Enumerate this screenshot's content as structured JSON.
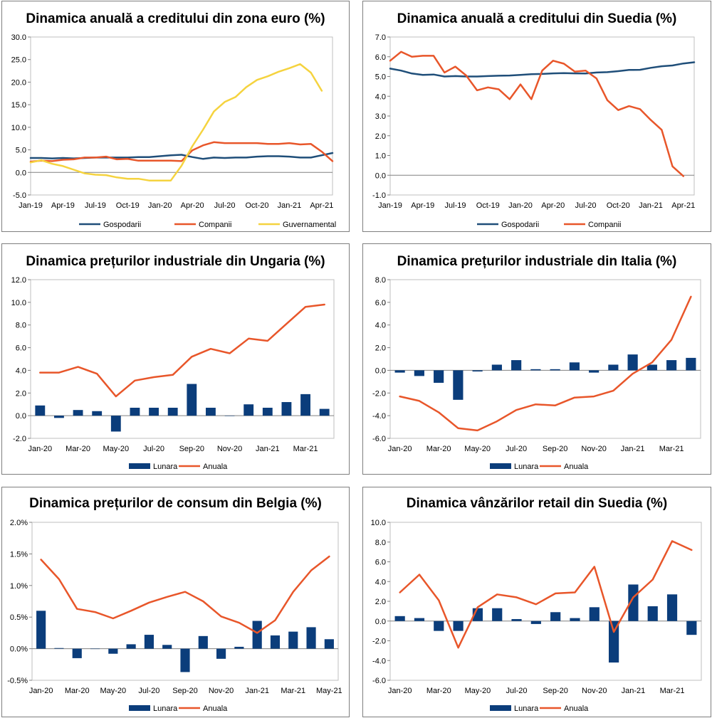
{
  "chart_data": [
    {
      "type": "line",
      "title": "Dinamica anuală a creditului din zona euro (%)",
      "xlabel": "",
      "ylabel": "",
      "ylim": [
        -5,
        30
      ],
      "ystep": 5,
      "ydecimals": 1,
      "ypercent": false,
      "x_tick_labels": [
        "Jan-19",
        "Apr-19",
        "Jul-19",
        "Oct-19",
        "Jan-20",
        "Apr-20",
        "Jul-20",
        "Oct-20",
        "Jan-21",
        "Apr-21"
      ],
      "series": [
        {
          "name": "Gospodarii",
          "kind": "line",
          "color": "#1f4e79",
          "values": [
            3.2,
            3.2,
            3.1,
            3.2,
            3.1,
            3.2,
            3.3,
            3.3,
            3.3,
            3.3,
            3.4,
            3.4,
            3.6,
            3.8,
            3.9,
            3.4,
            3.0,
            3.3,
            3.2,
            3.3,
            3.3,
            3.5,
            3.6,
            3.6,
            3.5,
            3.3,
            3.3,
            3.8,
            4.3
          ]
        },
        {
          "name": "Companii",
          "kind": "line",
          "color": "#e8562a",
          "values": [
            2.4,
            2.6,
            2.5,
            2.8,
            2.9,
            3.3,
            3.3,
            3.5,
            2.9,
            3.0,
            2.6,
            2.6,
            2.6,
            2.6,
            2.5,
            4.9,
            6.0,
            6.7,
            6.5,
            6.5,
            6.5,
            6.5,
            6.3,
            6.3,
            6.5,
            6.2,
            6.3,
            4.6,
            2.5
          ]
        },
        {
          "name": "Guvernamental",
          "kind": "line",
          "color": "#f5d33f",
          "values": [
            2.2,
            2.7,
            1.9,
            1.4,
            0.6,
            -0.2,
            -0.5,
            -0.6,
            -1.1,
            -1.4,
            -1.4,
            -1.8,
            -1.8,
            -1.8,
            1.5,
            5.8,
            9.5,
            13.5,
            15.6,
            16.7,
            18.9,
            20.5,
            21.3,
            22.3,
            23.1,
            24.0,
            22.1,
            18.1
          ]
        }
      ]
    },
    {
      "type": "line",
      "title": "Dinamica anuală a creditului din Suedia (%)",
      "xlabel": "",
      "ylabel": "",
      "ylim": [
        -1,
        7
      ],
      "ystep": 1,
      "ydecimals": 1,
      "ypercent": false,
      "x_tick_labels": [
        "Jan-19",
        "Apr-19",
        "Jul-19",
        "Oct-19",
        "Jan-20",
        "Apr-20",
        "Jul-20",
        "Oct-20",
        "Jan-21",
        "Apr-21"
      ],
      "series": [
        {
          "name": "Gospodarii",
          "kind": "line",
          "color": "#1f4e79",
          "values": [
            5.4,
            5.3,
            5.15,
            5.08,
            5.1,
            5.0,
            5.02,
            5.0,
            5.0,
            5.02,
            5.04,
            5.05,
            5.08,
            5.12,
            5.13,
            5.16,
            5.17,
            5.16,
            5.15,
            5.2,
            5.22,
            5.27,
            5.33,
            5.34,
            5.44,
            5.52,
            5.56,
            5.66,
            5.72
          ]
        },
        {
          "name": "Companii",
          "kind": "line",
          "color": "#e8562a",
          "values": [
            5.8,
            6.25,
            6.0,
            6.05,
            6.05,
            5.2,
            5.5,
            5.05,
            4.3,
            4.45,
            4.35,
            3.85,
            4.6,
            3.85,
            5.3,
            5.8,
            5.65,
            5.25,
            5.3,
            4.9,
            3.8,
            3.3,
            3.5,
            3.35,
            2.8,
            2.3,
            0.45,
            -0.05
          ]
        }
      ]
    },
    {
      "type": "bar+line",
      "title": "Dinamica prețurilor industriale din Ungaria (%)",
      "xlabel": "",
      "ylabel": "",
      "ylim": [
        -2,
        12
      ],
      "ystep": 2,
      "ydecimals": 1,
      "ypercent": false,
      "x_tick_labels": [
        "Jan-20",
        "Mar-20",
        "May-20",
        "Jul-20",
        "Sep-20",
        "Nov-20",
        "Jan-21",
        "Mar-21"
      ],
      "series": [
        {
          "name": "Lunara",
          "kind": "bar",
          "color": "#0b3d7b",
          "values": [
            0.9,
            -0.2,
            0.5,
            0.4,
            -1.4,
            0.7,
            0.7,
            0.7,
            2.8,
            0.7,
            0,
            1.0,
            0.7,
            1.2,
            1.9,
            0.6
          ]
        },
        {
          "name": "Anuala",
          "kind": "line",
          "color": "#e8562a",
          "values": [
            3.8,
            3.8,
            4.3,
            3.7,
            1.7,
            3.1,
            3.4,
            3.6,
            5.2,
            5.9,
            5.5,
            6.8,
            6.6,
            8.1,
            9.6,
            9.8
          ]
        }
      ]
    },
    {
      "type": "bar+line",
      "title": "Dinamica prețurilor industriale din Italia (%)",
      "xlabel": "",
      "ylabel": "",
      "ylim": [
        -6,
        8
      ],
      "ystep": 2,
      "ydecimals": 1,
      "ypercent": false,
      "x_tick_labels": [
        "Jan-20",
        "Mar-20",
        "May-20",
        "Jul-20",
        "Sep-20",
        "Nov-20",
        "Jan-21",
        "Mar-21"
      ],
      "series": [
        {
          "name": "Lunara",
          "kind": "bar",
          "color": "#0b3d7b",
          "values": [
            -0.2,
            -0.5,
            -1.1,
            -2.6,
            -0.1,
            0.5,
            0.9,
            0.1,
            0.1,
            0.7,
            -0.2,
            0.5,
            1.4,
            0.5,
            0.9,
            1.1
          ]
        },
        {
          "name": "Anuala",
          "kind": "line",
          "color": "#e8562a",
          "values": [
            -2.3,
            -2.7,
            -3.7,
            -5.1,
            -5.3,
            -4.5,
            -3.5,
            -3.0,
            -3.1,
            -2.4,
            -2.3,
            -1.8,
            -0.3,
            0.7,
            2.7,
            6.5
          ]
        }
      ]
    },
    {
      "type": "bar+line",
      "title": "Dinamica prețurilor de consum din Belgia (%)",
      "xlabel": "",
      "ylabel": "",
      "ylim": [
        -0.5,
        2.0
      ],
      "ystep": 0.5,
      "ydecimals": 1,
      "ypercent": true,
      "x_tick_labels": [
        "Jan-20",
        "Mar-20",
        "May-20",
        "Jul-20",
        "Sep-20",
        "Nov-20",
        "Jan-21",
        "Mar-21",
        "May-21"
      ],
      "series": [
        {
          "name": "Lunara",
          "kind": "bar",
          "color": "#0b3d7b",
          "values": [
            0.6,
            0.01,
            -0.15,
            0,
            -0.08,
            0.07,
            0.22,
            0.06,
            -0.37,
            0.2,
            -0.16,
            0.03,
            0.44,
            0.21,
            0.27,
            0.34,
            0.15
          ]
        },
        {
          "name": "Anuala",
          "kind": "line",
          "color": "#e8562a",
          "values": [
            1.41,
            1.1,
            0.63,
            0.58,
            0.48,
            0.6,
            0.73,
            0.82,
            0.9,
            0.75,
            0.51,
            0.41,
            0.25,
            0.45,
            0.9,
            1.24,
            1.46
          ]
        }
      ]
    },
    {
      "type": "bar+line",
      "title": "Dinamica vânzărilor retail din Suedia (%)",
      "xlabel": "",
      "ylabel": "",
      "ylim": [
        -6,
        10
      ],
      "ystep": 2,
      "ydecimals": 1,
      "ypercent": false,
      "x_tick_labels": [
        "Jan-20",
        "Mar-20",
        "May-20",
        "Jul-20",
        "Sep-20",
        "Nov-20",
        "Jan-21",
        "Mar-21"
      ],
      "series": [
        {
          "name": "Lunara",
          "kind": "bar",
          "color": "#0b3d7b",
          "values": [
            0.5,
            0.3,
            -1.0,
            -1.0,
            1.3,
            1.3,
            0.2,
            -0.3,
            0.9,
            0.3,
            1.4,
            -4.2,
            3.7,
            1.5,
            2.7,
            -1.4
          ]
        },
        {
          "name": "Anuala",
          "kind": "line",
          "color": "#e8562a",
          "values": [
            2.9,
            4.7,
            2.1,
            -2.7,
            1.4,
            2.7,
            2.4,
            1.7,
            2.8,
            2.9,
            5.5,
            -1.1,
            2.4,
            4.2,
            8.1,
            7.2
          ]
        }
      ]
    }
  ]
}
